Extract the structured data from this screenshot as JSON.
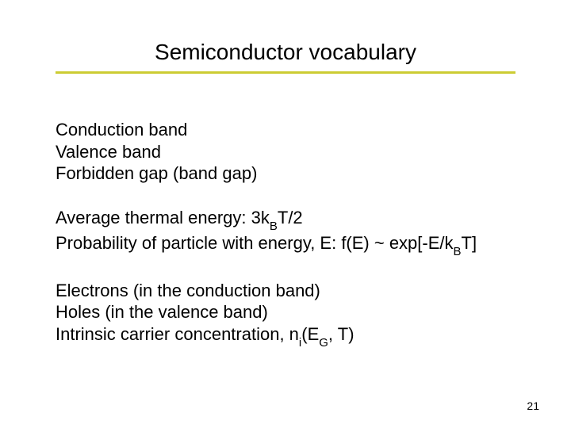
{
  "title": "Semiconductor vocabulary",
  "title_fontsize": 28,
  "title_color": "#000000",
  "underline_color": "#cccc33",
  "body_fontsize": 22,
  "body_color": "#000000",
  "background_color": "#ffffff",
  "blocks": [
    {
      "lines": [
        [
          {
            "t": "Conduction band"
          }
        ],
        [
          {
            "t": "Valence band"
          }
        ],
        [
          {
            "t": "Forbidden gap (band gap)"
          }
        ]
      ]
    },
    {
      "lines": [
        [
          {
            "t": "Average thermal energy:  3k"
          },
          {
            "t": "B",
            "sub": true
          },
          {
            "t": "T/2"
          }
        ],
        [
          {
            "t": "Probability of particle with energy, E:  f(E) ~ exp[-E/k"
          },
          {
            "t": "B",
            "sub": true
          },
          {
            "t": "T]"
          }
        ]
      ]
    },
    {
      "lines": [
        [
          {
            "t": "Electrons (in the conduction band)"
          }
        ],
        [
          {
            "t": "Holes (in the valence band)"
          }
        ],
        [
          {
            "t": "Intrinsic carrier concentration, n"
          },
          {
            "t": "i",
            "sub": true
          },
          {
            "t": "(E"
          },
          {
            "t": "G",
            "sub": true
          },
          {
            "t": ", T)"
          }
        ]
      ]
    }
  ],
  "page_number": "21",
  "page_number_fontsize": 14
}
